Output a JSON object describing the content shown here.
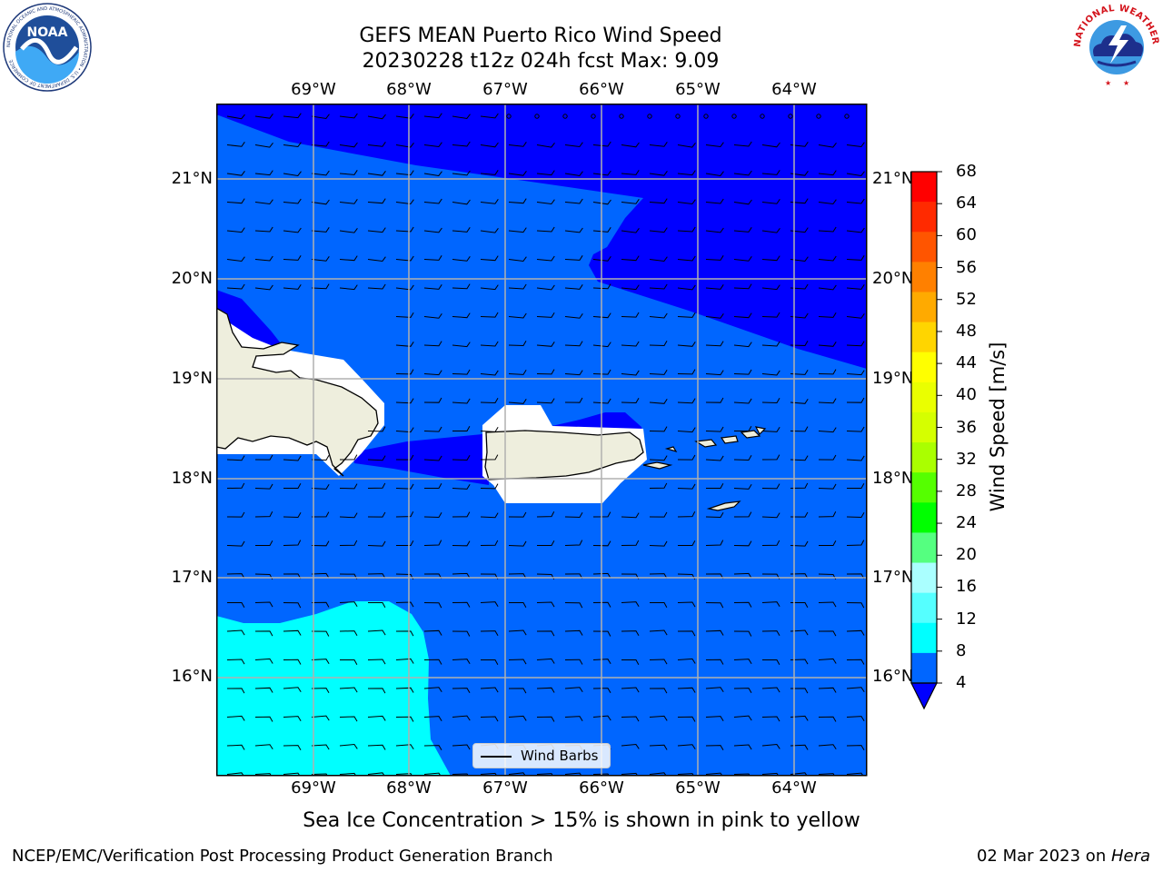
{
  "title": {
    "line1": "GEFS MEAN Puerto Rico Wind Speed",
    "line2": "20230228 t12z 024h fcst   Max: 9.09"
  },
  "map": {
    "lon_ticks": [
      "69°W",
      "68°W",
      "67°W",
      "66°W",
      "65°W",
      "64°W"
    ],
    "lat_ticks": [
      "21°N",
      "20°N",
      "19°N",
      "18°N",
      "17°N",
      "16°N"
    ],
    "legend_label": "Wind Barbs",
    "colors": {
      "band_4_8": "#0066ff",
      "band_below_4": "#0000ff",
      "band_8_12": "#00ffff",
      "land": "#eeeedd",
      "masked": "#ffffff"
    }
  },
  "colorbar": {
    "label": "Wind Speed [m/s]",
    "ticks": [
      "68",
      "64",
      "60",
      "56",
      "52",
      "48",
      "44",
      "40",
      "36",
      "32",
      "28",
      "24",
      "20",
      "16",
      "12",
      "8",
      "4"
    ],
    "colors": [
      "#ff0000",
      "#ff2a00",
      "#ff5500",
      "#ff8000",
      "#ffaa00",
      "#ffd500",
      "#ffff00",
      "#eaff00",
      "#d5ff00",
      "#aaff00",
      "#55ff00",
      "#00ff00",
      "#55ff80",
      "#aaffff",
      "#55ffff",
      "#00ffff",
      "#0066ff"
    ],
    "under_color": "#0000ff"
  },
  "caption": "Sea Ice Concentration > 15% is shown in pink to yellow",
  "footer": {
    "left": "NCEP/EMC/Verification Post Processing Product Generation Branch",
    "right_date": "02 Mar 2023 on ",
    "right_machine": "Hera"
  },
  "logos": {
    "noaa_text": "NOAA",
    "noaa_ring": "NATIONAL OCEANIC AND ATMOSPHERIC ADMINISTRATION • U.S. DEPARTMENT OF COMMERCE",
    "nws_ring": "NATIONAL WEATHER SERVICE"
  }
}
